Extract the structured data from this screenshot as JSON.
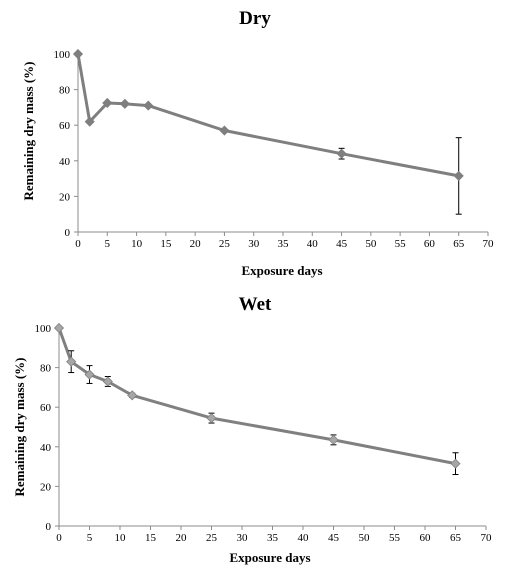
{
  "colors": {
    "dry_series": "#7f7f7f",
    "wet_series": "#808080",
    "wet_marker": "#a6a6a6",
    "axis": "#8c8c8c"
  },
  "chart_data": [
    {
      "type": "line",
      "title": "Dry",
      "xlabel": "Exposure days",
      "ylabel": "Remaining dry mass (%)",
      "xlim": [
        0,
        70
      ],
      "ylim": [
        0,
        100
      ],
      "xticks": [
        "0",
        "5",
        "10",
        "15",
        "20",
        "25",
        "30",
        "35",
        "40",
        "45",
        "50",
        "55",
        "60",
        "65",
        "70"
      ],
      "yticks": [
        "0",
        "20",
        "40",
        "60",
        "80",
        "100"
      ],
      "grid": false,
      "x": [
        0,
        2,
        5,
        8,
        12,
        25,
        45,
        65
      ],
      "series": [
        {
          "values": [
            100,
            62,
            72.5,
            72,
            71,
            57,
            44,
            31.5
          ],
          "err": [
            0,
            0,
            0,
            0,
            0,
            0,
            3,
            21.5
          ]
        }
      ]
    },
    {
      "type": "line",
      "title": "Wet",
      "xlabel": "Exposure days",
      "ylabel": "Remaining dry mass (%)",
      "xlim": [
        0,
        70
      ],
      "ylim": [
        0,
        100
      ],
      "xticks": [
        "0",
        "5",
        "10",
        "15",
        "20",
        "25",
        "30",
        "35",
        "40",
        "45",
        "50",
        "55",
        "60",
        "65",
        "70"
      ],
      "yticks": [
        "0",
        "20",
        "40",
        "60",
        "80",
        "100"
      ],
      "grid": false,
      "x": [
        0,
        2,
        5,
        8,
        12,
        25,
        45,
        65
      ],
      "series": [
        {
          "values": [
            100,
            83,
            76.5,
            73,
            66,
            54.5,
            43.5,
            31.5
          ],
          "err": [
            0,
            5.5,
            4.5,
            2.5,
            1,
            2.5,
            2.5,
            5.5
          ]
        }
      ]
    }
  ]
}
